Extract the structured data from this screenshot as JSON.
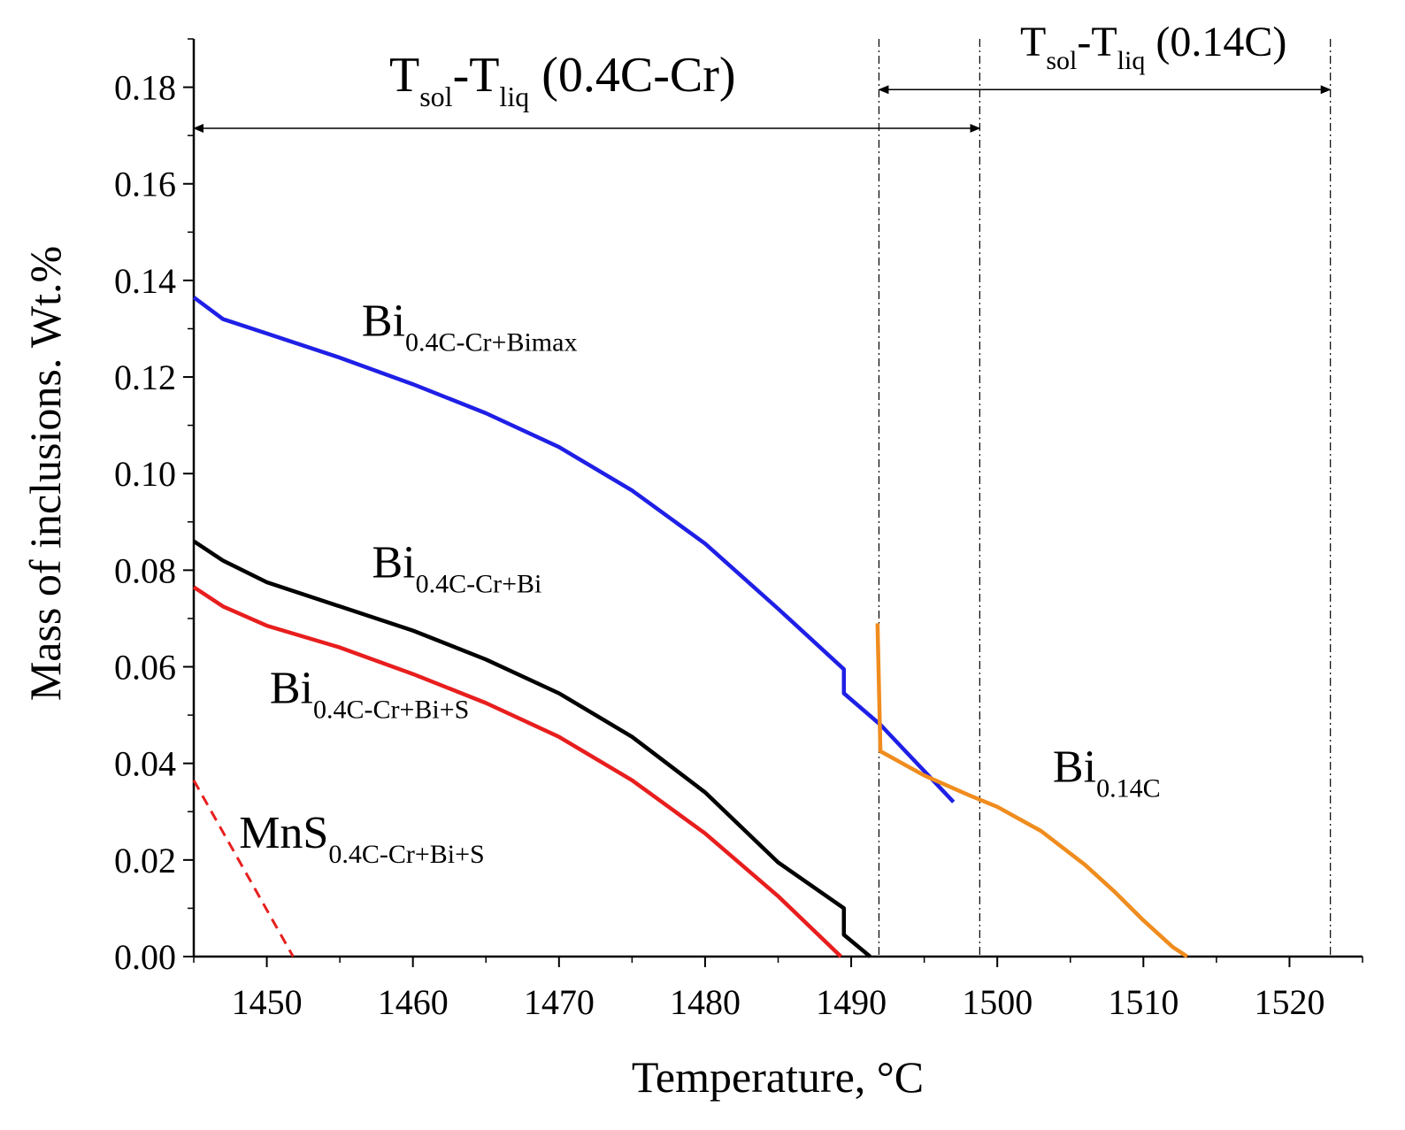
{
  "chart_data": {
    "type": "line",
    "title": "",
    "xlabel": "Temperature, °C",
    "ylabel": "Mass of inclusions. Wt.%",
    "xlim": [
      1445,
      1525
    ],
    "ylim": [
      0,
      0.19
    ],
    "xticks": [
      1450,
      1460,
      1470,
      1480,
      1490,
      1500,
      1510,
      1520
    ],
    "xtick_labels": [
      "1450",
      "1460",
      "1470",
      "1480",
      "1490",
      "1500",
      "1510",
      "1520"
    ],
    "yticks": [
      0,
      0.02,
      0.04,
      0.06,
      0.08,
      0.1,
      0.12,
      0.14,
      0.16,
      0.18
    ],
    "ytick_labels": [
      "0.00",
      "0.02",
      "0.04",
      "0.06",
      "0.08",
      "0.10",
      "0.12",
      "0.14",
      "0.16",
      "0.18"
    ],
    "grid": false,
    "series": [
      {
        "name": "Bi 0.4C-Cr+Bimax",
        "color": "#1f1fe6",
        "style": "solid",
        "x": [
          1445,
          1447,
          1450,
          1455,
          1460,
          1465,
          1470,
          1475,
          1480,
          1485,
          1489.5,
          1489.5,
          1492,
          1497
        ],
        "y": [
          0.1365,
          0.132,
          0.129,
          0.124,
          0.1185,
          0.1125,
          0.1055,
          0.0965,
          0.0855,
          0.072,
          0.0595,
          0.0545,
          0.048,
          0.032
        ]
      },
      {
        "name": "Bi 0.4C-Cr+Bi",
        "color": "#000000",
        "style": "solid",
        "x": [
          1445,
          1447,
          1450,
          1455,
          1460,
          1465,
          1470,
          1475,
          1480,
          1485,
          1489.5,
          1489.5,
          1491.3
        ],
        "y": [
          0.086,
          0.082,
          0.0775,
          0.0725,
          0.0675,
          0.0615,
          0.0545,
          0.0455,
          0.034,
          0.0195,
          0.01,
          0.0045,
          0.0
        ]
      },
      {
        "name": "Bi 0.4C-Cr+Bi+S",
        "color": "#e81e1e",
        "style": "solid",
        "x": [
          1445,
          1447,
          1450,
          1455,
          1460,
          1465,
          1470,
          1475,
          1480,
          1485,
          1489.3
        ],
        "y": [
          0.0765,
          0.0725,
          0.0685,
          0.064,
          0.0585,
          0.0525,
          0.0455,
          0.0365,
          0.0255,
          0.0125,
          0.0
        ]
      },
      {
        "name": "MnS 0.4C-Cr+Bi+S",
        "color": "#e81e1e",
        "style": "dashed",
        "x": [
          1445,
          1451.8
        ],
        "y": [
          0.0365,
          0.0
        ]
      },
      {
        "name": "Bi 0.14C",
        "color": "#f08c1e",
        "style": "solid",
        "x": [
          1491.8,
          1492,
          1495,
          1498,
          1500,
          1503,
          1506,
          1508,
          1510,
          1512,
          1513
        ],
        "y": [
          0.069,
          0.0425,
          0.0375,
          0.0335,
          0.031,
          0.026,
          0.019,
          0.0135,
          0.0075,
          0.002,
          0.0
        ]
      }
    ],
    "vlines": [
      1491.9,
      1498.8,
      1522.8
    ],
    "annotations": [
      {
        "main": "Bi",
        "sub": "0.4C-Cr+Bimax",
        "x": 1456.5,
        "y": 0.1285
      },
      {
        "main": "Bi",
        "sub": "0.4C-Cr+Bi",
        "x": 1457.2,
        "y": 0.0785
      },
      {
        "main": "Bi",
        "sub": "0.4C-Cr+Bi+S",
        "x": 1450.2,
        "y": 0.0525
      },
      {
        "main": "MnS",
        "sub": "0.4C-Cr+Bi+S",
        "x": 1448.1,
        "y": 0.0225
      },
      {
        "main": "Bi",
        "sub": "0.14C",
        "x": 1503.8,
        "y": 0.0362
      }
    ],
    "ranges": [
      {
        "label_a": "T",
        "sub_a": "sol",
        "label_b": "-T",
        "sub_b": "liq",
        "label_c": " (0.4C-Cr)",
        "x_start": 1445,
        "x_end": 1498.8,
        "y": 0.1715
      },
      {
        "label_a": "T",
        "sub_a": "sol",
        "label_b": "-T",
        "sub_b": "liq",
        "label_c": " (0.14C)",
        "x_start": 1491.9,
        "x_end": 1522.8,
        "y": 0.1795
      }
    ]
  }
}
